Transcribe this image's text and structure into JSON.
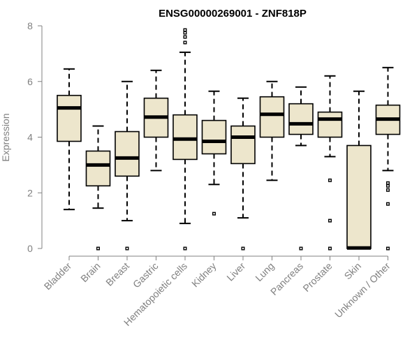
{
  "chart_data": {
    "type": "boxplot",
    "title": "ENSG00000269001 - ZNF818P",
    "xlabel": "",
    "ylabel": "Expression",
    "ylim": [
      0,
      8
    ],
    "yticks": [
      0,
      2,
      4,
      6,
      8
    ],
    "colors": {
      "box_fill": "#ede6cc",
      "stroke": "#000000",
      "axis": "#808080"
    },
    "categories": [
      "Bladder",
      "Brain",
      "Breast",
      "Gastric",
      "Hematopoietic cells",
      "Kidney",
      "Liver",
      "Lung",
      "Pancreas",
      "Prostate",
      "Skin",
      "Unknown / Other"
    ],
    "boxes": [
      {
        "category": "Bladder",
        "whisker_low": 1.4,
        "q1": 3.85,
        "median": 5.05,
        "q3": 5.5,
        "whisker_high": 6.45,
        "outliers": []
      },
      {
        "category": "Brain",
        "whisker_low": 1.45,
        "q1": 2.25,
        "median": 3.0,
        "q3": 3.5,
        "whisker_high": 4.4,
        "outliers": [
          0
        ]
      },
      {
        "category": "Breast",
        "whisker_low": 1.0,
        "q1": 2.6,
        "median": 3.25,
        "q3": 4.2,
        "whisker_high": 6.0,
        "outliers": [
          0
        ]
      },
      {
        "category": "Gastric",
        "whisker_low": 2.8,
        "q1": 4.0,
        "median": 4.72,
        "q3": 5.4,
        "whisker_high": 6.4,
        "outliers": []
      },
      {
        "category": "Hematopoietic cells",
        "whisker_low": 0.9,
        "q1": 3.2,
        "median": 3.93,
        "q3": 4.8,
        "whisker_high": 7.05,
        "outliers": [
          0,
          7.4,
          7.6,
          7.75,
          7.85
        ]
      },
      {
        "category": "Kidney",
        "whisker_low": 2.3,
        "q1": 3.4,
        "median": 3.85,
        "q3": 4.6,
        "whisker_high": 5.65,
        "outliers": [
          1.25
        ]
      },
      {
        "category": "Liver",
        "whisker_low": 1.1,
        "q1": 3.05,
        "median": 4.0,
        "q3": 4.4,
        "whisker_high": 5.4,
        "outliers": [
          0
        ]
      },
      {
        "category": "Lung",
        "whisker_low": 2.45,
        "q1": 4.0,
        "median": 4.82,
        "q3": 5.45,
        "whisker_high": 6.0,
        "outliers": []
      },
      {
        "category": "Pancreas",
        "whisker_low": 3.7,
        "q1": 4.1,
        "median": 4.48,
        "q3": 5.2,
        "whisker_high": 5.8,
        "outliers": [
          0
        ]
      },
      {
        "category": "Prostate",
        "whisker_low": 3.3,
        "q1": 4.0,
        "median": 4.65,
        "q3": 4.9,
        "whisker_high": 6.2,
        "outliers": [
          0,
          1.0,
          2.45
        ]
      },
      {
        "category": "Skin",
        "whisker_low": 0.0,
        "q1": 0.0,
        "median": 0.02,
        "q3": 3.7,
        "whisker_high": 5.65,
        "outliers": []
      },
      {
        "category": "Unknown / Other",
        "whisker_low": 2.8,
        "q1": 4.1,
        "median": 4.65,
        "q3": 5.15,
        "whisker_high": 6.5,
        "outliers": [
          0,
          1.6,
          2.1,
          2.25,
          2.35
        ]
      }
    ]
  }
}
